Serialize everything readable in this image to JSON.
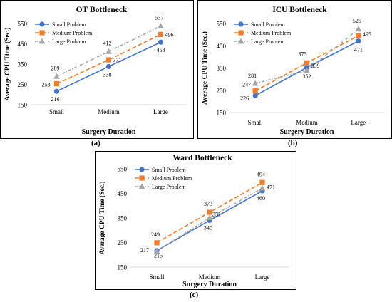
{
  "colors": {
    "small": "#4472C4",
    "medium": "#ED7D31",
    "large": "#A5A5A5",
    "axis": "#000000",
    "grid_line": "#d9d9d9"
  },
  "captions": [
    "(a)",
    "(b)",
    "(c)"
  ],
  "chart_data": [
    {
      "type": "line",
      "title": "OT Bottleneck",
      "xlabel": "Surgery Duration",
      "ylabel": "Average CPU Time (Sec.)",
      "categories": [
        "Small",
        "Medium",
        "Large"
      ],
      "ylim": [
        150,
        550
      ],
      "yticks": [
        "150",
        "250",
        "350",
        "450",
        "550"
      ],
      "legend": "top-left",
      "series": [
        {
          "name": "Small Problem",
          "values": [
            216,
            338,
            458
          ],
          "labels": [
            "216",
            "338",
            "458"
          ]
        },
        {
          "name": "Medium Problem",
          "values": [
            253,
            371,
            496
          ],
          "labels": [
            "253",
            "371",
            "496"
          ]
        },
        {
          "name": "Large Problem",
          "values": [
            289,
            412,
            537
          ],
          "labels": [
            "289",
            "412",
            "537"
          ]
        }
      ]
    },
    {
      "type": "line",
      "title": "ICU Bottleneck",
      "xlabel": "Surgery Duration",
      "ylabel": "Average CPU Time (Sec.)",
      "categories": [
        "Small",
        "Medium",
        "Large"
      ],
      "ylim": [
        150,
        550
      ],
      "yticks": [
        "150",
        "250",
        "350",
        "450",
        "550"
      ],
      "legend": "top-left",
      "series": [
        {
          "name": "Small Problem",
          "values": [
            226,
            352,
            471
          ],
          "labels": [
            "226",
            "352",
            "471"
          ]
        },
        {
          "name": "Medium Problem",
          "values": [
            247,
            373,
            495
          ],
          "labels": [
            "247",
            "373",
            "495"
          ]
        },
        {
          "name": "Large Problem",
          "values": [
            281,
            339,
            525
          ],
          "labels": [
            "281",
            "339",
            "525"
          ]
        }
      ]
    },
    {
      "type": "line",
      "title": "Ward Bottleneck",
      "xlabel": "Surgery Duration",
      "ylabel": "Average CPU Time (Sec.)",
      "categories": [
        "Small",
        "Medium",
        "Large"
      ],
      "ylim": [
        150,
        550
      ],
      "yticks": [
        "150",
        "250",
        "350",
        "450",
        "550"
      ],
      "legend": "top-left",
      "series": [
        {
          "name": "Small Problem",
          "values": [
            217,
            340,
            460
          ],
          "labels": [
            "217",
            "340",
            "460"
          ]
        },
        {
          "name": "Medium Problem",
          "values": [
            249,
            373,
            494
          ],
          "labels": [
            "249",
            "373",
            "494"
          ]
        },
        {
          "name": "Large Problem",
          "values": [
            215,
            351,
            471
          ],
          "labels": [
            "215",
            "351",
            "471"
          ]
        }
      ]
    }
  ]
}
